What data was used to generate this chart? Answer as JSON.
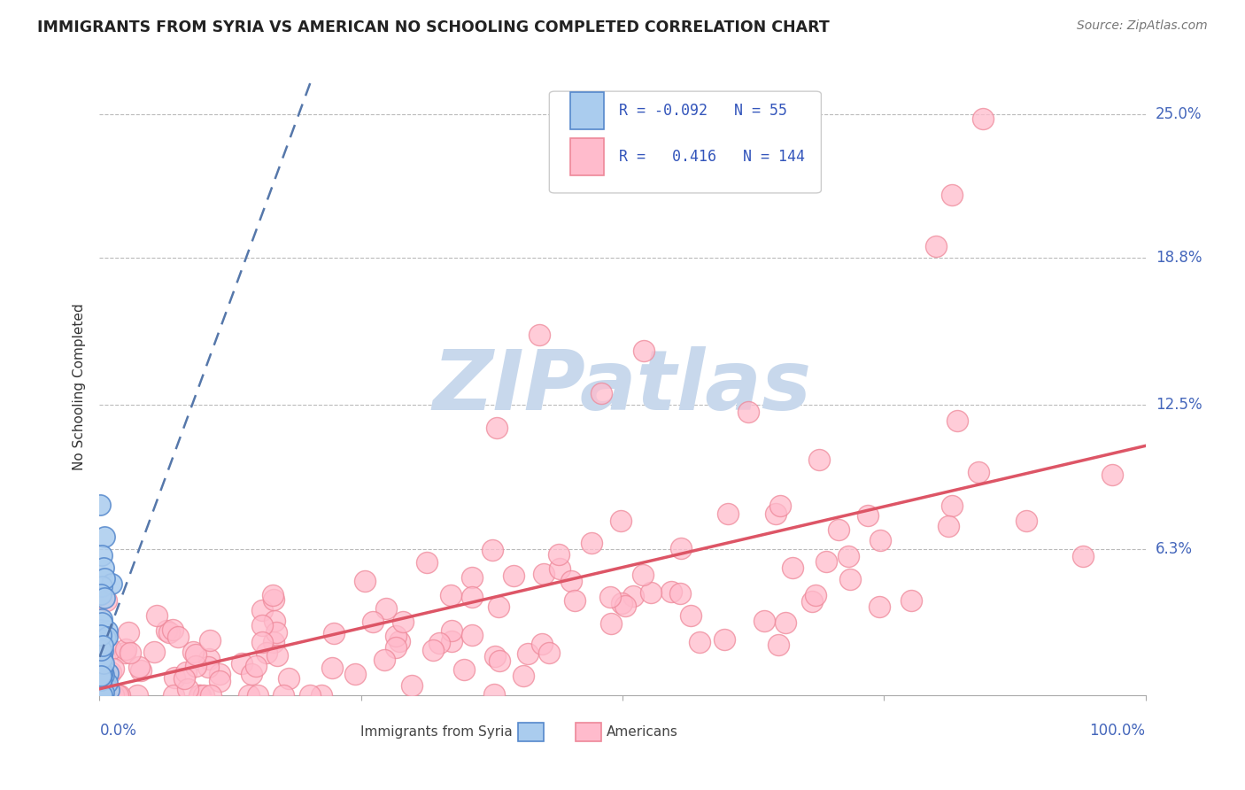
{
  "title": "IMMIGRANTS FROM SYRIA VS AMERICAN NO SCHOOLING COMPLETED CORRELATION CHART",
  "source": "Source: ZipAtlas.com",
  "ylabel": "No Schooling Completed",
  "legend_r1": "-0.092",
  "legend_n1": "55",
  "legend_r2": "0.416",
  "legend_n2": "144",
  "blue_edge": "#5588CC",
  "blue_face": "#AACCEE",
  "pink_edge": "#EE8899",
  "pink_face": "#FFBBCC",
  "trend_pink": "#DD5566",
  "trend_blue": "#5577AA",
  "watermark": "ZIPatlas",
  "watermark_color": "#C8D8EC",
  "xlim": [
    0.0,
    1.0
  ],
  "ylim": [
    0.0,
    0.265
  ],
  "ytick_vals": [
    0.063,
    0.125,
    0.188,
    0.25
  ],
  "ytick_labels": [
    "6.3%",
    "12.5%",
    "18.8%",
    "25.0%"
  ]
}
